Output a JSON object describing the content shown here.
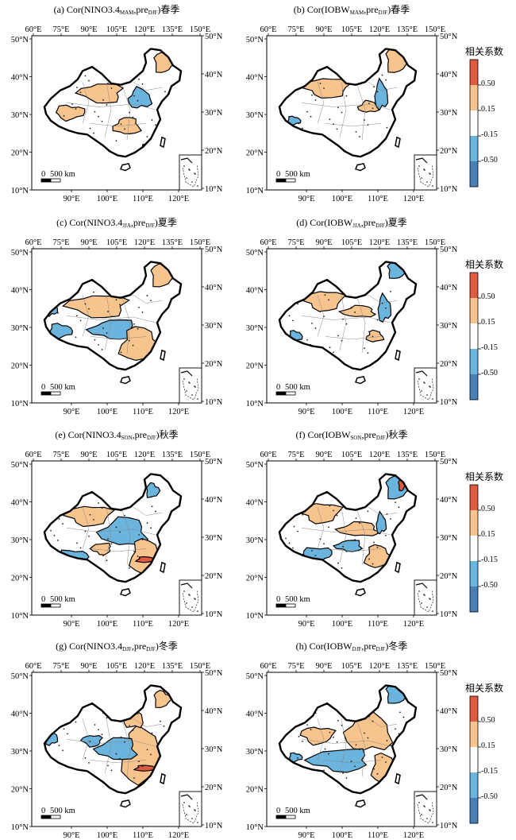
{
  "figure": {
    "panels": [
      {
        "id": "a",
        "title_pre": "(a) Cor(NINO3.4",
        "title_sub1": "MAM",
        "title_mid": ",pre",
        "title_sub2": "DJF",
        "title_post": ")春季"
      },
      {
        "id": "b",
        "title_pre": "(b) Cor(IOBW",
        "title_sub1": "MAM",
        "title_mid": ",pre",
        "title_sub2": "DJF",
        "title_post": ")春季"
      },
      {
        "id": "c",
        "title_pre": "(c) Cor(NINO3.4",
        "title_sub1": "JJA",
        "title_mid": ",pre",
        "title_sub2": "DJF",
        "title_post": ")夏季"
      },
      {
        "id": "d",
        "title_pre": "(d) Cor(IOBW",
        "title_sub1": "JJA",
        "title_mid": ",pre",
        "title_sub2": "DJF",
        "title_post": ")夏季"
      },
      {
        "id": "e",
        "title_pre": "(e) Cor(NINO3.4",
        "title_sub1": "SON",
        "title_mid": ",pre",
        "title_sub2": "DJF",
        "title_post": ")秋季"
      },
      {
        "id": "f",
        "title_pre": "(f) Cor(IOBW",
        "title_sub1": "SON",
        "title_mid": ",pre",
        "title_sub2": "DJF",
        "title_post": ")秋季"
      },
      {
        "id": "g",
        "title_pre": "(g) Cor(NINO3.4",
        "title_sub1": "DJF",
        "title_mid": ",pre",
        "title_sub2": "DJF",
        "title_post": ")冬季"
      },
      {
        "id": "h",
        "title_pre": "(h) Cor(IOBW",
        "title_sub1": "DJF",
        "title_mid": ",pre",
        "title_sub2": "DJF",
        "title_post": ")冬季"
      }
    ],
    "top_ticks": [
      "60°E",
      "75°E",
      "90°E",
      "105°E",
      "120°E",
      "135°E",
      "150°E"
    ],
    "bottom_ticks": [
      "90°E",
      "100°E",
      "110°E",
      "120°E"
    ],
    "left_ticks": [
      "50°N",
      "40°N",
      "30°N",
      "20°N",
      "10°N"
    ],
    "right_ticks": [
      "50°N",
      "40°N",
      "30°N",
      "20°N",
      "10°N"
    ],
    "scale_bar": {
      "zero": "0",
      "label": "500 km"
    },
    "legend": {
      "title": "相关系数",
      "labels": [
        "0.50",
        "0.15",
        "-0.15",
        "-0.50"
      ],
      "colors": [
        "#e05a3f",
        "#f7c48d",
        "#ffffff",
        "#6ab4dd",
        "#4a7fb5"
      ]
    }
  }
}
